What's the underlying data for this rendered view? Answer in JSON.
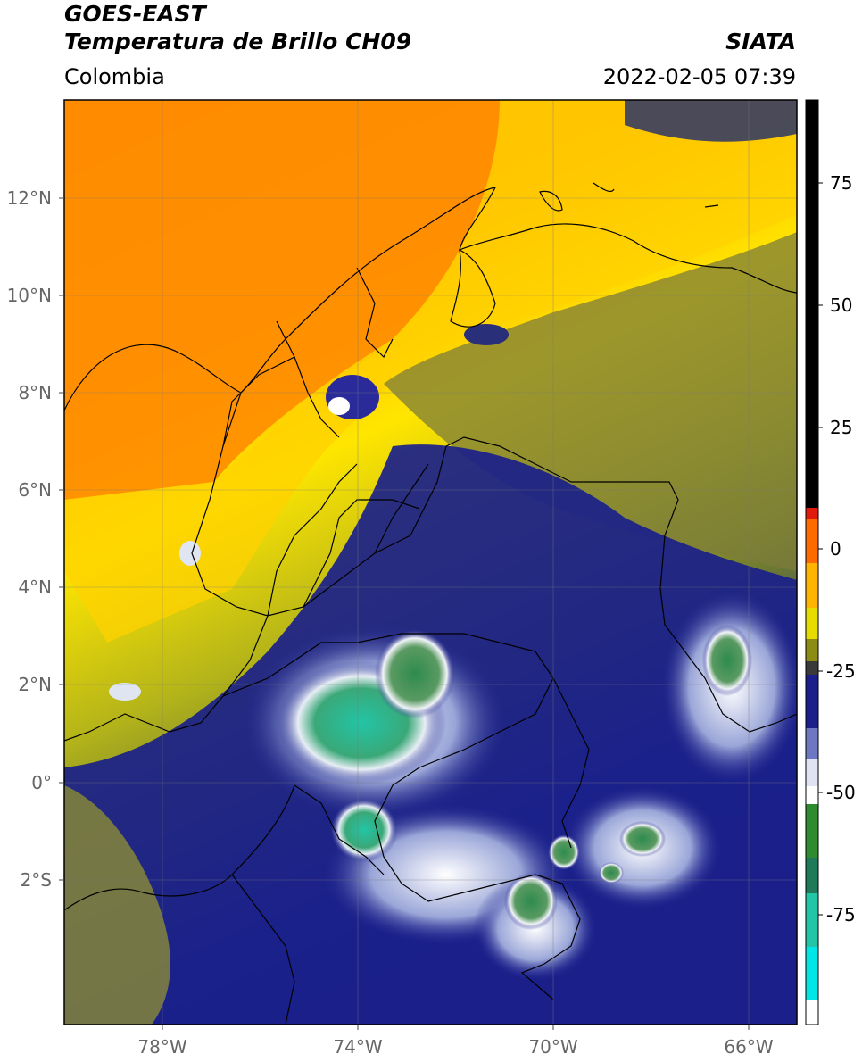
{
  "header": {
    "satellite": "GOES-EAST",
    "product": "Temperatura de Brillo CH09",
    "agency": "SIATA",
    "region": "Colombia",
    "timestamp": "2022-02-05 07:39"
  },
  "map": {
    "lat_labels": [
      "12°N",
      "10°N",
      "8°N",
      "6°N",
      "4°N",
      "2°N",
      "0°",
      "2°S"
    ],
    "lon_labels": [
      "78°W",
      "74°W",
      "70°W",
      "66°W"
    ],
    "lat_range": [
      -5.2,
      14.0
    ],
    "lon_range": [
      -80.0,
      -65.0
    ],
    "gridlines": true
  },
  "colorbar": {
    "tick_labels": [
      "75",
      "50",
      "25",
      "0",
      "-25",
      "-50",
      "-75"
    ],
    "range": [
      -97,
      90
    ],
    "colors": {
      "warm_black": "#000000",
      "red": "#e11a0c",
      "orange": "#ff8c00",
      "yellow": "#ffe600",
      "olive": "#8c8c14",
      "navy": "#1a1f8a",
      "white": "#ffffff",
      "green": "#2e8b2e",
      "teal": "#22c5a6",
      "cyan": "#00e5e5"
    }
  }
}
